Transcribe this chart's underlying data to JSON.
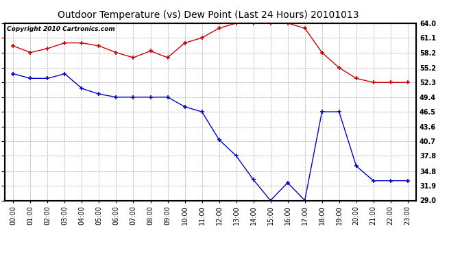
{
  "title": "Outdoor Temperature (vs) Dew Point (Last 24 Hours) 20101013",
  "copyright": "Copyright 2010 Cartronics.com",
  "x_labels": [
    "00:00",
    "01:00",
    "02:00",
    "03:00",
    "04:00",
    "05:00",
    "06:00",
    "07:00",
    "08:00",
    "09:00",
    "10:00",
    "11:00",
    "12:00",
    "13:00",
    "14:00",
    "15:00",
    "16:00",
    "17:00",
    "18:00",
    "19:00",
    "20:00",
    "21:00",
    "22:00",
    "23:00"
  ],
  "temp_red": [
    59.5,
    58.2,
    59.0,
    60.1,
    60.1,
    59.5,
    58.2,
    57.2,
    58.5,
    57.2,
    60.1,
    61.1,
    63.0,
    64.0,
    64.0,
    64.0,
    64.0,
    63.0,
    58.2,
    55.2,
    53.1,
    52.3,
    52.3,
    52.3
  ],
  "dew_blue": [
    54.0,
    53.1,
    53.1,
    54.0,
    51.1,
    50.0,
    49.4,
    49.4,
    49.4,
    49.4,
    47.5,
    46.5,
    41.0,
    37.8,
    33.1,
    29.0,
    32.5,
    29.0,
    46.5,
    46.5,
    35.8,
    32.9,
    32.9,
    32.9
  ],
  "ylim_min": 29.0,
  "ylim_max": 64.0,
  "yticks": [
    29.0,
    31.9,
    34.8,
    37.8,
    40.7,
    43.6,
    46.5,
    49.4,
    52.3,
    55.2,
    58.2,
    61.1,
    64.0
  ],
  "ytick_labels": [
    "29.0",
    "31.9",
    "34.8",
    "37.8",
    "40.7",
    "43.6",
    "46.5",
    "49.4",
    "52.3",
    "55.2",
    "58.2",
    "61.1",
    "64.0"
  ],
  "red_color": "#cc0000",
  "blue_color": "#0000cc",
  "bg_color": "#ffffff",
  "plot_bg_color": "#ffffff",
  "grid_color": "#aaaaaa",
  "title_fontsize": 10,
  "copyright_fontsize": 6.5,
  "tick_fontsize": 7,
  "marker": "+",
  "markersize": 4,
  "linewidth": 1.0
}
